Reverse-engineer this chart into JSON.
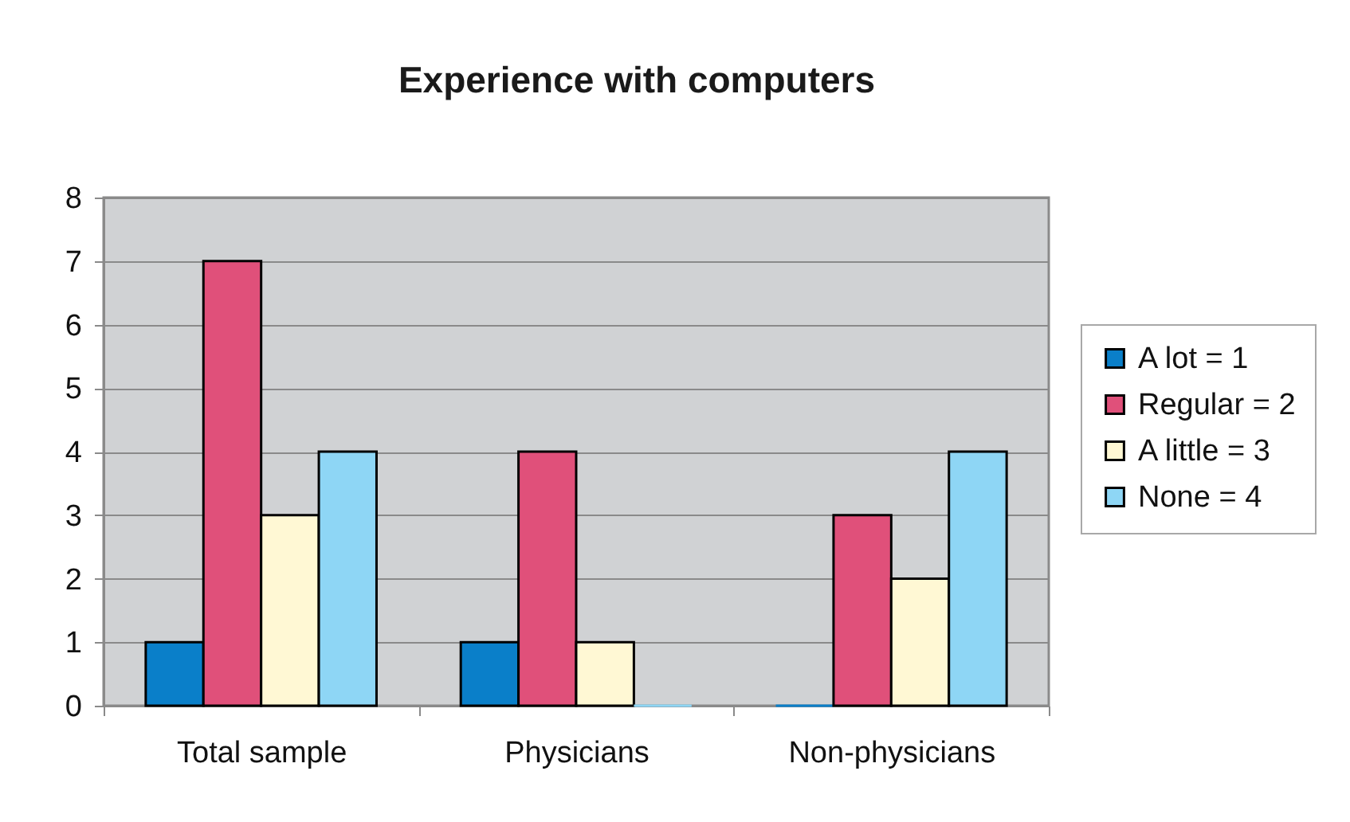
{
  "chart_data": {
    "type": "bar",
    "title": "Experience with computers",
    "categories": [
      "Total sample",
      "Physicians",
      "Non-physicians"
    ],
    "series": [
      {
        "name": "A lot = 1",
        "color": "#0a7fc9",
        "values": [
          1,
          1,
          0
        ]
      },
      {
        "name": "Regular = 2",
        "color": "#e0507a",
        "values": [
          7,
          4,
          3
        ]
      },
      {
        "name": "A little = 3",
        "color": "#fff8d4",
        "values": [
          3,
          1,
          2
        ]
      },
      {
        "name": "None = 4",
        "color": "#8ed6f5",
        "values": [
          4,
          0,
          4
        ]
      }
    ],
    "ylim": [
      0,
      8
    ],
    "yticks": [
      0,
      1,
      2,
      3,
      4,
      5,
      6,
      7,
      8
    ],
    "grid": "y",
    "legend": "right"
  }
}
